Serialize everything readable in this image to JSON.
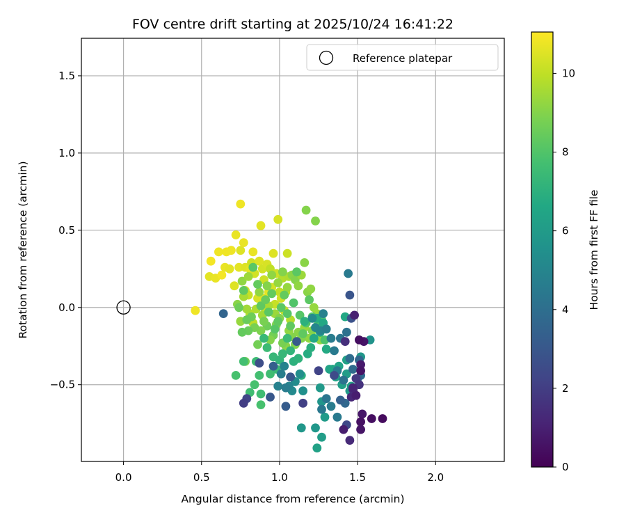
{
  "chart_data": {
    "type": "scatter",
    "title": "FOV centre drift starting at 2025/10/24 16:41:22",
    "xlabel": "Angular distance from reference (arcmin)",
    "ylabel": "Rotation from reference (arcmin)",
    "xlim": [
      -0.27,
      2.44
    ],
    "ylim": [
      -0.997,
      1.743
    ],
    "xticks": [
      0.0,
      0.5,
      1.0,
      1.5,
      2.0
    ],
    "xtick_labels": [
      "0.0",
      "0.5",
      "1.0",
      "1.5",
      "2.0"
    ],
    "yticks": [
      -0.5,
      0.0,
      0.5,
      1.0,
      1.5
    ],
    "ytick_labels": [
      "−0.5",
      "0.0",
      "0.5",
      "1.0",
      "1.5"
    ],
    "grid": true,
    "legend": {
      "position": "upper right",
      "entries": [
        "Reference platepar"
      ]
    },
    "reference_point": {
      "name": "Reference platepar",
      "x": 0.0,
      "y": 0.0
    },
    "colorbar": {
      "label": "Hours from first FF file",
      "range": [
        0,
        11.05
      ],
      "ticks": [
        0,
        2,
        4,
        6,
        8,
        10
      ],
      "tick_labels": [
        "0",
        "2",
        "4",
        "6",
        "8",
        "10"
      ],
      "colormap": "viridis"
    },
    "series": [
      {
        "name": "FOV centre drift",
        "points": [
          [
            0.46,
            -0.02,
            10.8
          ],
          [
            0.56,
            0.3,
            10.9
          ],
          [
            0.55,
            0.2,
            10.6
          ],
          [
            0.59,
            0.19,
            10.7
          ],
          [
            0.61,
            0.36,
            10.8
          ],
          [
            0.63,
            0.21,
            10.9
          ],
          [
            0.65,
            0.26,
            10.7
          ],
          [
            0.66,
            0.36,
            10.8
          ],
          [
            0.68,
            0.25,
            10.6
          ],
          [
            0.69,
            0.37,
            10.8
          ],
          [
            0.71,
            0.14,
            10.5
          ],
          [
            0.72,
            0.47,
            10.7
          ],
          [
            0.74,
            0.26,
            10.6
          ],
          [
            0.75,
            0.37,
            10.5
          ],
          [
            0.75,
            0.67,
            10.8
          ],
          [
            0.77,
            0.42,
            10.7
          ],
          [
            0.78,
            0.11,
            10.3
          ],
          [
            0.78,
            0.26,
            10.5
          ],
          [
            0.8,
            0.08,
            10.1
          ],
          [
            0.81,
            0.25,
            10.6
          ],
          [
            0.82,
            0.29,
            10.2
          ],
          [
            0.83,
            0.36,
            10.7
          ],
          [
            0.84,
            0.22,
            10.3
          ],
          [
            0.86,
            0.06,
            10.4
          ],
          [
            0.87,
            0.3,
            10.5
          ],
          [
            0.88,
            0.53,
            10.6
          ],
          [
            0.89,
            0.25,
            10.3
          ],
          [
            0.9,
            0.18,
            10.2
          ],
          [
            0.9,
            0.06,
            10.5
          ],
          [
            0.91,
            -0.02,
            10.1
          ],
          [
            0.92,
            0.28,
            10.4
          ],
          [
            0.93,
            0.1,
            10.6
          ],
          [
            0.94,
            0.25,
            10.0
          ],
          [
            0.95,
            0.13,
            10.3
          ],
          [
            0.96,
            0.35,
            10.5
          ],
          [
            0.97,
            0.02,
            10.1
          ],
          [
            0.98,
            0.22,
            10.2
          ],
          [
            0.99,
            0.57,
            10.4
          ],
          [
            1.0,
            0.1,
            10.0
          ],
          [
            1.01,
            0.06,
            10.3
          ],
          [
            1.02,
            0.19,
            9.8
          ],
          [
            1.03,
            -0.02,
            10.0
          ],
          [
            1.04,
            0.1,
            9.9
          ],
          [
            1.05,
            0.35,
            10.2
          ],
          [
            1.06,
            0.2,
            9.7
          ],
          [
            1.07,
            -0.08,
            9.8
          ],
          [
            0.97,
            -0.04,
            9.4
          ],
          [
            0.93,
            0.01,
            9.6
          ],
          [
            0.89,
            -0.05,
            9.5
          ],
          [
            0.85,
            -0.01,
            9.7
          ],
          [
            0.83,
            -0.1,
            9.9
          ],
          [
            0.81,
            -0.04,
            9.8
          ],
          [
            0.79,
            -0.01,
            9.5
          ],
          [
            0.77,
            0.07,
            9.6
          ],
          [
            0.75,
            -0.09,
            9.3
          ],
          [
            0.73,
            0.02,
            9.1
          ],
          [
            0.76,
            0.17,
            9.2
          ],
          [
            0.8,
            0.2,
            9.4
          ],
          [
            0.87,
            0.1,
            9.2
          ],
          [
            0.92,
            0.14,
            9.0
          ],
          [
            0.95,
            0.21,
            9.2
          ],
          [
            0.99,
            0.16,
            9.3
          ],
          [
            1.02,
            0.23,
            9.0
          ],
          [
            1.05,
            0.13,
            9.3
          ],
          [
            1.08,
            0.21,
            9.1
          ],
          [
            1.1,
            0.18,
            9.0
          ],
          [
            1.12,
            0.14,
            9.2
          ],
          [
            1.14,
            0.21,
            9.4
          ],
          [
            1.16,
            0.29,
            9.1
          ],
          [
            1.17,
            0.63,
            9.0
          ],
          [
            1.18,
            0.1,
            9.1
          ],
          [
            1.2,
            0.12,
            9.2
          ],
          [
            1.23,
            0.56,
            9.0
          ],
          [
            1.22,
            0.0,
            9.3
          ],
          [
            1.24,
            -0.04,
            9.4
          ],
          [
            1.25,
            -0.09,
            9.1
          ],
          [
            1.26,
            -0.21,
            9.2
          ],
          [
            1.21,
            -0.15,
            9.0
          ],
          [
            1.19,
            -0.2,
            9.2
          ],
          [
            1.16,
            -0.13,
            9.3
          ],
          [
            1.14,
            -0.2,
            9.0
          ],
          [
            1.12,
            -0.16,
            9.1
          ],
          [
            1.1,
            -0.24,
            8.9
          ],
          [
            1.08,
            -0.19,
            9.0
          ],
          [
            1.06,
            -0.15,
            9.2
          ],
          [
            1.04,
            -0.25,
            9.1
          ],
          [
            1.02,
            -0.23,
            8.8
          ],
          [
            1.0,
            -0.07,
            9.0
          ],
          [
            0.98,
            -0.11,
            8.9
          ],
          [
            0.96,
            -0.18,
            8.7
          ],
          [
            0.94,
            -0.21,
            9.0
          ],
          [
            0.92,
            -0.12,
            8.6
          ],
          [
            0.9,
            -0.09,
            8.8
          ],
          [
            0.88,
            -0.15,
            8.9
          ],
          [
            0.86,
            -0.24,
            8.7
          ],
          [
            0.84,
            -0.13,
            8.8
          ],
          [
            0.82,
            -0.06,
            8.6
          ],
          [
            0.8,
            -0.15,
            8.5
          ],
          [
            0.78,
            -0.35,
            8.7
          ],
          [
            0.76,
            -0.16,
            8.4
          ],
          [
            0.74,
            0.0,
            8.6
          ],
          [
            0.77,
            0.11,
            8.3
          ],
          [
            0.79,
            -0.08,
            8.5
          ],
          [
            0.83,
            0.26,
            8.2
          ],
          [
            0.86,
            0.15,
            8.4
          ],
          [
            0.88,
            0.01,
            8.3
          ],
          [
            0.91,
            0.05,
            8.5
          ],
          [
            0.93,
            -0.03,
            8.2
          ],
          [
            0.95,
            0.09,
            8.4
          ],
          [
            0.97,
            -0.14,
            8.1
          ],
          [
            0.99,
            -0.09,
            8.3
          ],
          [
            1.01,
            0.0,
            8.2
          ],
          [
            1.03,
            0.08,
            8.4
          ],
          [
            1.05,
            -0.04,
            8.1
          ],
          [
            1.07,
            -0.12,
            8.3
          ],
          [
            1.09,
            0.03,
            8.0
          ],
          [
            1.11,
            0.23,
            8.2
          ],
          [
            1.13,
            -0.05,
            8.1
          ],
          [
            1.15,
            -0.17,
            8.3
          ],
          [
            1.17,
            -0.1,
            8.0
          ],
          [
            1.19,
            0.05,
            8.2
          ],
          [
            1.21,
            -0.06,
            8.1
          ],
          [
            1.24,
            -0.12,
            7.9
          ],
          [
            1.27,
            -0.08,
            8.0
          ],
          [
            1.29,
            -0.21,
            7.9
          ],
          [
            0.72,
            -0.44,
            7.8
          ],
          [
            0.77,
            -0.35,
            7.7
          ],
          [
            0.81,
            -0.55,
            7.6
          ],
          [
            0.84,
            -0.5,
            7.8
          ],
          [
            0.85,
            -0.35,
            7.5
          ],
          [
            0.87,
            -0.44,
            7.7
          ],
          [
            0.88,
            -0.56,
            7.6
          ],
          [
            0.88,
            -0.63,
            7.8
          ],
          [
            0.9,
            -0.2,
            7.4
          ],
          [
            0.92,
            -0.26,
            7.5
          ],
          [
            0.94,
            -0.43,
            7.6
          ],
          [
            0.96,
            -0.32,
            7.3
          ],
          [
            0.98,
            -0.4,
            7.4
          ],
          [
            1.0,
            -0.34,
            7.2
          ],
          [
            1.02,
            -0.3,
            7.3
          ],
          [
            1.05,
            -0.2,
            7.5
          ],
          [
            1.07,
            -0.28,
            7.2
          ],
          [
            1.09,
            -0.35,
            7.0
          ],
          [
            1.12,
            -0.33,
            7.1
          ],
          [
            1.14,
            -0.44,
            6.9
          ],
          [
            1.16,
            -0.09,
            7.0
          ],
          [
            1.18,
            -0.3,
            6.8
          ],
          [
            1.2,
            -0.26,
            6.9
          ],
          [
            1.22,
            -0.2,
            6.7
          ],
          [
            1.24,
            -0.07,
            6.8
          ],
          [
            1.26,
            -0.16,
            6.5
          ],
          [
            1.28,
            -0.1,
            6.6
          ],
          [
            1.3,
            -0.27,
            6.7
          ],
          [
            1.32,
            -0.4,
            6.4
          ],
          [
            1.34,
            -0.4,
            6.5
          ],
          [
            1.36,
            -0.45,
            6.3
          ],
          [
            1.38,
            -0.38,
            6.4
          ],
          [
            1.4,
            -0.5,
            6.2
          ],
          [
            1.42,
            -0.06,
            6.6
          ],
          [
            1.43,
            -0.34,
            6.3
          ],
          [
            1.43,
            -0.43,
            6.1
          ],
          [
            1.45,
            -0.54,
            6.0
          ],
          [
            1.46,
            -0.51,
            6.2
          ],
          [
            1.52,
            -0.32,
            5.8
          ],
          [
            1.58,
            -0.21,
            5.6
          ],
          [
            1.24,
            -0.91,
            6.3
          ],
          [
            1.27,
            -0.84,
            6.1
          ],
          [
            1.29,
            -0.71,
            6.0
          ],
          [
            1.23,
            -0.78,
            5.8
          ],
          [
            1.26,
            -0.52,
            5.9
          ],
          [
            1.27,
            -0.61,
            5.7
          ],
          [
            1.14,
            -0.78,
            5.8
          ],
          [
            1.15,
            -0.54,
            5.5
          ],
          [
            1.13,
            -0.43,
            5.4
          ],
          [
            1.1,
            -0.48,
            5.3
          ],
          [
            1.08,
            -0.54,
            5.2
          ],
          [
            1.06,
            -0.51,
            5.0
          ],
          [
            1.03,
            -0.38,
            4.9
          ],
          [
            1.01,
            -0.43,
            4.7
          ],
          [
            0.99,
            -0.51,
            4.8
          ],
          [
            1.04,
            -0.52,
            4.6
          ],
          [
            1.21,
            -0.07,
            5.2
          ],
          [
            1.23,
            -0.13,
            5.0
          ],
          [
            1.26,
            -0.15,
            4.9
          ],
          [
            1.28,
            -0.04,
            4.8
          ],
          [
            1.3,
            -0.14,
            4.7
          ],
          [
            1.33,
            -0.2,
            4.6
          ],
          [
            1.35,
            -0.28,
            4.5
          ],
          [
            1.37,
            -0.41,
            4.4
          ],
          [
            1.39,
            -0.2,
            4.3
          ],
          [
            1.41,
            -0.47,
            4.2
          ],
          [
            1.27,
            -0.66,
            4.4
          ],
          [
            1.3,
            -0.59,
            4.3
          ],
          [
            1.33,
            -0.64,
            4.6
          ],
          [
            1.37,
            -0.71,
            4.5
          ],
          [
            1.44,
            0.22,
            4.5
          ],
          [
            1.43,
            -0.16,
            4.1
          ],
          [
            1.45,
            -0.33,
            3.9
          ],
          [
            1.47,
            -0.4,
            3.8
          ],
          [
            1.51,
            -0.34,
            3.6
          ],
          [
            1.52,
            -0.44,
            3.9
          ],
          [
            1.5,
            -0.46,
            3.5
          ],
          [
            1.42,
            -0.62,
            3.7
          ],
          [
            1.39,
            -0.6,
            3.4
          ],
          [
            1.04,
            -0.64,
            3.2
          ],
          [
            1.07,
            -0.45,
            3.0
          ],
          [
            1.11,
            -0.22,
            3.1
          ],
          [
            0.64,
            -0.04,
            3.6
          ],
          [
            0.96,
            -0.38,
            3.3
          ],
          [
            0.94,
            -0.58,
            3.0
          ],
          [
            1.45,
            0.08,
            2.9
          ],
          [
            1.46,
            -0.07,
            2.8
          ],
          [
            0.87,
            -0.36,
            2.6
          ],
          [
            0.79,
            -0.59,
            2.3
          ],
          [
            0.77,
            -0.62,
            2.0
          ],
          [
            1.25,
            -0.41,
            2.2
          ],
          [
            1.35,
            -0.44,
            2.5
          ],
          [
            1.43,
            -0.76,
            2.4
          ],
          [
            1.15,
            -0.62,
            2.1
          ],
          [
            1.49,
            -0.46,
            1.8
          ],
          [
            1.51,
            -0.5,
            1.6
          ],
          [
            1.48,
            -0.05,
            1.0
          ],
          [
            1.52,
            -0.37,
            0.8
          ],
          [
            1.52,
            -0.41,
            0.6
          ],
          [
            1.46,
            -0.58,
            1.2
          ],
          [
            1.47,
            -0.53,
            1.4
          ],
          [
            1.49,
            -0.57,
            0.9
          ],
          [
            1.53,
            -0.69,
            0.7
          ],
          [
            1.52,
            -0.74,
            0.5
          ],
          [
            1.52,
            -0.79,
            0.6
          ],
          [
            1.45,
            -0.86,
            1.3
          ],
          [
            1.41,
            -0.79,
            0.9
          ],
          [
            1.59,
            -0.72,
            0.4
          ],
          [
            1.66,
            -0.72,
            0.3
          ],
          [
            1.54,
            -0.22,
            0.6
          ],
          [
            1.51,
            -0.21,
            0.4
          ],
          [
            1.42,
            -0.22,
            1.5
          ],
          [
            1.47,
            -0.52,
            1.1
          ]
        ]
      }
    ]
  }
}
